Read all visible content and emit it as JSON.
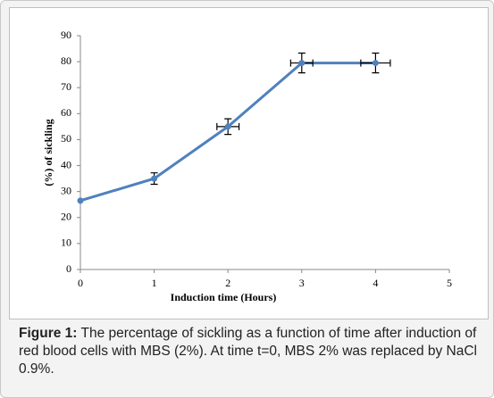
{
  "chart_data": {
    "type": "line",
    "x_label": "Induction time (Hours)",
    "y_label": "(%) of sickling",
    "x": [
      0,
      1,
      2,
      3,
      4
    ],
    "series": [
      {
        "color": "#4f81bd",
        "values": [
          26.5,
          35,
          55,
          79.5,
          79.5
        ],
        "y_errors": [
          0,
          2.2,
          3,
          3.8,
          3.8
        ],
        "x_errors": [
          0,
          0,
          0.15,
          0.15,
          0.2
        ]
      }
    ],
    "xlim": [
      0,
      5
    ],
    "xticks": [
      0,
      1,
      2,
      3,
      4,
      5
    ],
    "ylim": [
      0,
      90
    ],
    "yticks": [
      0,
      10,
      20,
      30,
      40,
      50,
      60,
      70,
      80,
      90
    ],
    "grid": false
  },
  "caption": {
    "label": "Figure 1:",
    "text": " The percentage of sickling as a function of time after induction of red blood cells with MBS (2%). At time t=0, MBS 2% was replaced by NaCl 0.9%."
  }
}
